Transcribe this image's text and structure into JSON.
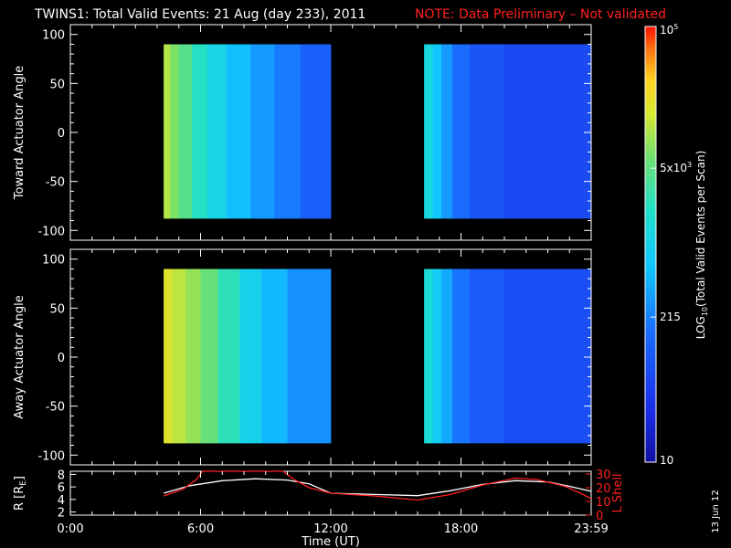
{
  "header": {
    "title": "TWINS1: Total Valid Events: 21 Aug (day 233), 2011",
    "note": "NOTE: Data Preliminary – Not validated",
    "title_color": "#ffffff",
    "note_color": "#ff2020"
  },
  "side_date": "13 Jun 12",
  "chart_data": [
    {
      "type": "heatmap",
      "ylabel": "Toward Actuator Angle",
      "xlim": [
        0,
        24
      ],
      "ylim": [
        -110,
        110
      ],
      "yticks": [
        100,
        50,
        0,
        -50,
        -100
      ],
      "data_extent_y": [
        -88,
        90
      ],
      "segments": [
        {
          "start_hour": 4.3,
          "end_hour": 12.0
        },
        {
          "start_hour": 16.3,
          "end_hour": 24.0
        }
      ],
      "columns": [
        {
          "x0": 4.3,
          "x1": 4.6,
          "log_value": 4.05
        },
        {
          "x0": 4.6,
          "x1": 5.0,
          "log_value": 3.85
        },
        {
          "x0": 5.0,
          "x1": 5.6,
          "log_value": 3.65
        },
        {
          "x0": 5.6,
          "x1": 6.3,
          "log_value": 3.35
        },
        {
          "x0": 6.3,
          "x1": 7.2,
          "log_value": 3.05
        },
        {
          "x0": 7.2,
          "x1": 8.3,
          "log_value": 2.75
        },
        {
          "x0": 8.3,
          "x1": 9.4,
          "log_value": 2.5
        },
        {
          "x0": 9.4,
          "x1": 10.6,
          "log_value": 2.3
        },
        {
          "x0": 10.6,
          "x1": 12.0,
          "log_value": 2.05
        },
        {
          "x0": 16.3,
          "x1": 16.7,
          "log_value": 3.1
        },
        {
          "x0": 16.7,
          "x1": 17.1,
          "log_value": 2.8
        },
        {
          "x0": 17.1,
          "x1": 17.6,
          "log_value": 2.5
        },
        {
          "x0": 17.6,
          "x1": 18.4,
          "log_value": 2.2
        },
        {
          "x0": 18.4,
          "x1": 20.0,
          "log_value": 1.95
        },
        {
          "x0": 20.0,
          "x1": 24.0,
          "log_value": 1.8
        }
      ]
    },
    {
      "type": "heatmap",
      "ylabel": "Away Actuator Angle",
      "xlim": [
        0,
        24
      ],
      "ylim": [
        -110,
        110
      ],
      "yticks": [
        100,
        50,
        0,
        -50,
        -100
      ],
      "data_extent_y": [
        -88,
        90
      ],
      "segments": [
        {
          "start_hour": 4.3,
          "end_hour": 12.0
        },
        {
          "start_hour": 16.3,
          "end_hour": 24.0
        }
      ],
      "columns": [
        {
          "x0": 4.3,
          "x1": 4.7,
          "log_value": 4.25
        },
        {
          "x0": 4.7,
          "x1": 5.3,
          "log_value": 4.1
        },
        {
          "x0": 5.3,
          "x1": 6.0,
          "log_value": 3.95
        },
        {
          "x0": 6.0,
          "x1": 6.8,
          "log_value": 3.75
        },
        {
          "x0": 6.8,
          "x1": 7.8,
          "log_value": 3.4
        },
        {
          "x0": 7.8,
          "x1": 8.8,
          "log_value": 3.0
        },
        {
          "x0": 8.8,
          "x1": 10.0,
          "log_value": 2.7
        },
        {
          "x0": 10.0,
          "x1": 12.0,
          "log_value": 2.45
        },
        {
          "x0": 16.3,
          "x1": 16.7,
          "log_value": 3.2
        },
        {
          "x0": 16.7,
          "x1": 17.1,
          "log_value": 2.9
        },
        {
          "x0": 17.1,
          "x1": 17.6,
          "log_value": 2.6
        },
        {
          "x0": 17.6,
          "x1": 18.4,
          "log_value": 2.25
        },
        {
          "x0": 18.4,
          "x1": 20.0,
          "log_value": 2.0
        },
        {
          "x0": 20.0,
          "x1": 24.0,
          "log_value": 1.85
        }
      ]
    },
    {
      "type": "line",
      "xlabel": "Time (UT)",
      "xlim": [
        0,
        24
      ],
      "xticks": [
        0,
        6,
        12,
        18,
        24
      ],
      "xtick_labels": [
        "0:00",
        "6:00",
        "12:00",
        "18:00",
        "23:59"
      ],
      "ylabel_left": "R [R",
      "ylabel_left_sub": "E",
      "ylabel_left_close": "]",
      "ylim_left": [
        1.5,
        8.5
      ],
      "yticks_left": [
        2,
        4,
        6,
        8
      ],
      "ylabel_right": "L Shell",
      "ylim_right": [
        0,
        32
      ],
      "yticks_right": [
        0,
        10,
        20,
        30
      ],
      "series": [
        {
          "axis": "left",
          "color": "#ffffff",
          "x": [
            4.3,
            5.5,
            7.0,
            8.5,
            10.0,
            11.0,
            12.0,
            14.0,
            16.0,
            17.5,
            19.0,
            20.5,
            22.0,
            23.0,
            24.0
          ],
          "y": [
            5.0,
            6.2,
            7.0,
            7.3,
            7.1,
            6.5,
            5.0,
            4.8,
            4.6,
            5.4,
            6.4,
            7.0,
            6.8,
            6.1,
            5.3
          ]
        },
        {
          "axis": "right",
          "color": "#ff2020",
          "x": [
            4.3,
            5.2,
            5.8,
            6.1,
            9.8,
            10.3,
            11.0,
            12.0,
            14.0,
            16.0,
            17.5,
            19.0,
            20.5,
            21.5,
            22.8,
            23.5,
            24.0
          ],
          "y": [
            14,
            19,
            26,
            32,
            32,
            26,
            20,
            16,
            14,
            11,
            15,
            22,
            27,
            26,
            21,
            16,
            12
          ]
        }
      ]
    },
    {
      "type": "colorbar",
      "label_prefix": "LOG",
      "label_sub": "10",
      "label_suffix": "(Total Valid Events per Scan)",
      "log_range": [
        1.0,
        5.0
      ],
      "tick_labels": [
        {
          "log_value": 5.0,
          "base": "10",
          "sup": "5"
        },
        {
          "log_value": 3.699,
          "base": "5x10",
          "sup": "3"
        },
        {
          "log_value": 2.332,
          "base": "215",
          "sup": ""
        },
        {
          "log_value": 1.0,
          "base": "10",
          "sup": ""
        }
      ]
    }
  ]
}
